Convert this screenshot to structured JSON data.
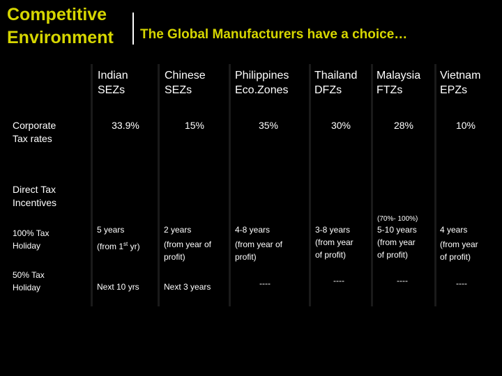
{
  "title": {
    "line1": "Competitive",
    "line2": "Environment",
    "subtitle": "The Global Manufacturers have a choice…"
  },
  "columns": [
    {
      "line1": "Indian",
      "line2": "SEZs"
    },
    {
      "line1": "Chinese",
      "line2": "SEZs"
    },
    {
      "line1": "Philippines",
      "line2": "Eco.Zones"
    },
    {
      "line1": "Thailand",
      "line2": "DFZs"
    },
    {
      "line1": "Malaysia",
      "line2": "FTZs"
    },
    {
      "line1": "Vietnam",
      "line2": "EPZs"
    }
  ],
  "rows": {
    "corporate_tax": {
      "line1": "Corporate",
      "line2": "Tax rates"
    },
    "direct_tax": {
      "line1": "Direct Tax",
      "line2": "Incentives"
    },
    "holiday100": {
      "line1": "100% Tax",
      "line2": "Holiday"
    },
    "holiday50": {
      "line1": "50% Tax",
      "line2": "Holiday"
    }
  },
  "tax_rates": [
    "33.9%",
    "15%",
    "35%",
    "30%",
    "28%",
    "10%"
  ],
  "malaysia_note": "(70%- 100%)",
  "holiday100": [
    {
      "line1": "5 years",
      "line2a": "(from 1",
      "sup": "st",
      "line2b": " yr)"
    },
    {
      "line1": "2 years",
      "line2": "(from year of",
      "line3": "profit)"
    },
    {
      "line1": "4-8 years",
      "line2": "(from year of",
      "line3": "profit)"
    },
    {
      "line1": "3-8 years",
      "line2": "(from year",
      "line3": "of profit)"
    },
    {
      "line1": "5-10 years",
      "line2": "(from year",
      "line3": "of profit)"
    },
    {
      "line1": "4 years",
      "line2": "(from year",
      "line3": "of profit)"
    }
  ],
  "holiday50": [
    "Next 10 yrs",
    "Next 3 years",
    "----",
    "----",
    "----",
    "----"
  ],
  "colors": {
    "title": "#d6d600",
    "background": "#000000",
    "panel": "#1a1a1a",
    "text": "#ffffff"
  }
}
